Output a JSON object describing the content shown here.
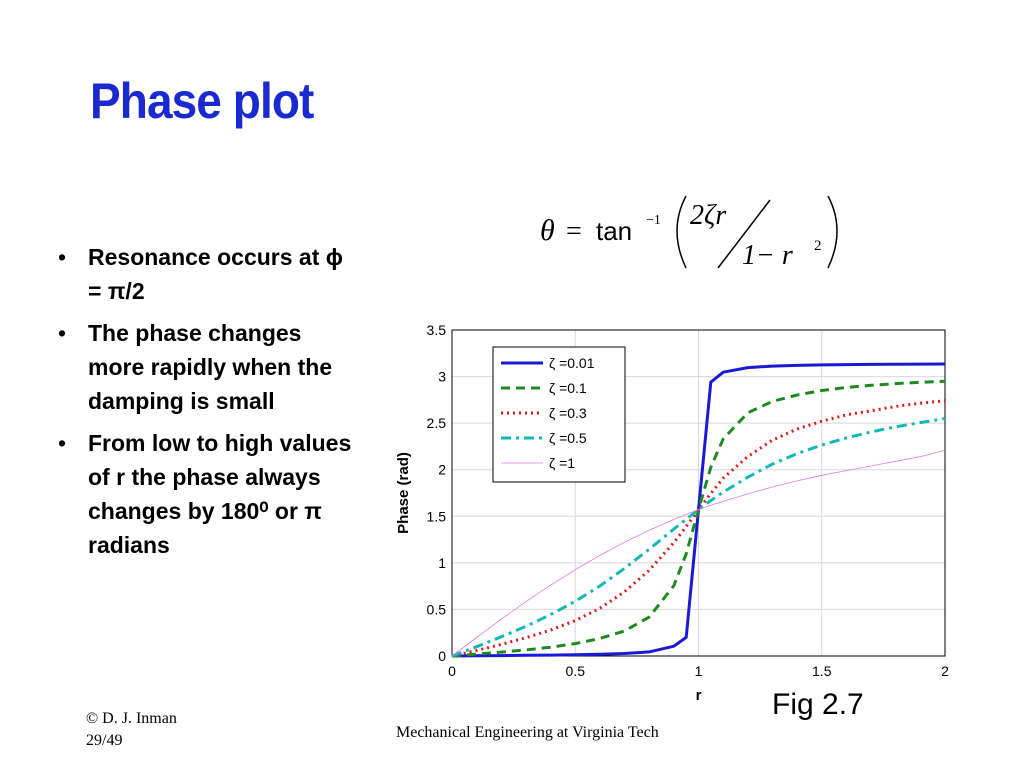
{
  "slide": {
    "title": "Phase plot",
    "bullets": [
      "Resonance occurs at ϕ = π/2",
      "The phase changes more rapidly when the damping is small",
      "From low to high values of r the phase always changes by 180⁰ or π radians"
    ],
    "formula": {
      "lhs": "θ",
      "eq": "=",
      "func": "tan",
      "exp": "−1",
      "num": "2ζr",
      "den": "1− r",
      "den_exp": "2"
    },
    "fig_label": "Fig 2.7",
    "footer": {
      "copyright": "© D. J. Inman",
      "page": "29/49",
      "center": "Mechanical Engineering at Virginia Tech"
    }
  },
  "chart_data": {
    "type": "line",
    "xlabel": "r",
    "ylabel": "Phase (rad)",
    "xlim": [
      0,
      2
    ],
    "ylim": [
      0,
      3.5
    ],
    "xticks": [
      "0",
      "0.5",
      "1",
      "1.5",
      "2"
    ],
    "yticks": [
      "0",
      "0.5",
      "1",
      "1.5",
      "2",
      "2.5",
      "3",
      "3.5"
    ],
    "grid": true,
    "legend_position": "top-left",
    "x": [
      0,
      0.1,
      0.2,
      0.3,
      0.4,
      0.5,
      0.6,
      0.7,
      0.8,
      0.9,
      0.95,
      1.0,
      1.05,
      1.1,
      1.2,
      1.3,
      1.4,
      1.5,
      1.6,
      1.7,
      1.8,
      1.9,
      2.0
    ],
    "series": [
      {
        "name": "ζ =0.01",
        "color": "#1a1ad6",
        "dash": "solid",
        "width": 3,
        "values": [
          0,
          0.002,
          0.004,
          0.007,
          0.01,
          0.013,
          0.019,
          0.027,
          0.044,
          0.105,
          0.2,
          1.571,
          2.94,
          3.047,
          3.096,
          3.112,
          3.12,
          3.125,
          3.129,
          3.131,
          3.133,
          3.134,
          3.135
        ]
      },
      {
        "name": "ζ =0.1",
        "color": "#1e8a1e",
        "dash": "9,6",
        "width": 3,
        "values": [
          0,
          0.02,
          0.042,
          0.066,
          0.095,
          0.133,
          0.188,
          0.268,
          0.418,
          0.756,
          1.097,
          1.571,
          2.026,
          2.33,
          2.611,
          2.733,
          2.802,
          2.85,
          2.884,
          2.906,
          2.925,
          2.939,
          2.95
        ]
      },
      {
        "name": "ζ =0.3",
        "color": "#e01818",
        "dash": "2,4",
        "width": 3,
        "values": [
          0,
          0.06,
          0.125,
          0.197,
          0.278,
          0.38,
          0.512,
          0.689,
          0.92,
          1.217,
          1.389,
          1.571,
          1.745,
          1.91,
          2.142,
          2.317,
          2.437,
          2.52,
          2.59,
          2.632,
          2.68,
          2.714,
          2.74
        ]
      },
      {
        "name": "ζ =0.5",
        "color": "#10b8b8",
        "dash": "10,5,3,5",
        "width": 3,
        "values": [
          0,
          0.1,
          0.206,
          0.318,
          0.444,
          0.588,
          0.752,
          0.94,
          1.147,
          1.364,
          1.469,
          1.571,
          1.669,
          1.76,
          1.92,
          2.06,
          2.173,
          2.265,
          2.342,
          2.406,
          2.461,
          2.506,
          2.55
        ]
      },
      {
        "name": "ζ =1",
        "color": "#e07ae0",
        "dash": "solid",
        "width": 0.8,
        "values": [
          0,
          0.199,
          0.395,
          0.583,
          0.761,
          0.927,
          1.08,
          1.222,
          1.35,
          1.466,
          1.52,
          1.571,
          1.62,
          1.66,
          1.74,
          1.814,
          1.88,
          1.94,
          1.99,
          2.04,
          2.09,
          2.14,
          2.21
        ]
      }
    ]
  }
}
